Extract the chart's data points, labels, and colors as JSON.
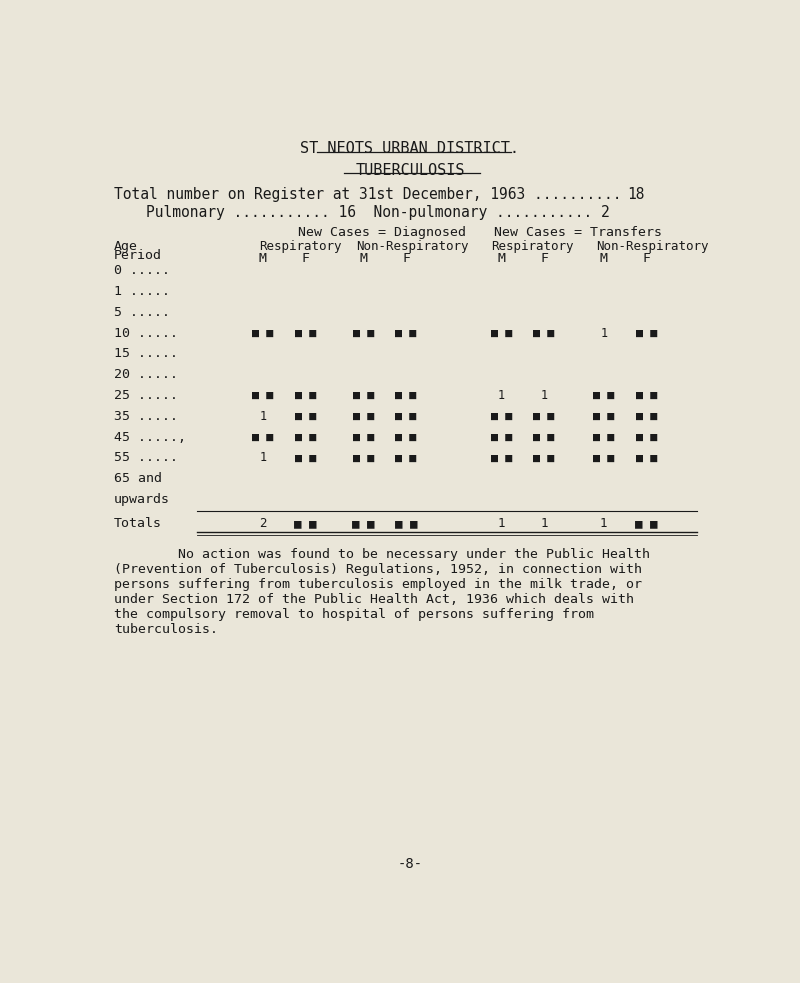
{
  "title1": "ST NEOTS URBAN DISTRICT.",
  "title2": "TUBERCULOSIS",
  "total_line": "Total number on Register at 31st December, 1963 ..........",
  "total_val": "18",
  "pulm_line": "Pulmonary ........... 16  Non-pulmonary ........... 2",
  "header_diag": "New Cases = Diagnosed",
  "header_trans": "New Cases = Transfers",
  "age_periods": [
    "0",
    "1",
    "5",
    "10",
    "15",
    "20",
    "25",
    "35",
    "45",
    "55",
    "65 and",
    "upwards"
  ],
  "age_dots": [
    ".....",
    ".....",
    ".....",
    ".....",
    ".....",
    ".....",
    ".....",
    ".....",
    ".....,",
    ".....",
    "",
    ""
  ],
  "table_data": {
    "diag_resp_m": [
      " ",
      " ",
      " ",
      "s",
      " ",
      " ",
      "s",
      "1",
      "s",
      "1",
      " ",
      " "
    ],
    "diag_resp_f": [
      " ",
      " ",
      " ",
      "s",
      " ",
      " ",
      "s",
      "s",
      "s",
      "s",
      " ",
      " "
    ],
    "diag_nonresp_m": [
      " ",
      " ",
      " ",
      "s",
      " ",
      " ",
      "s",
      "s",
      "s",
      "s",
      " ",
      " "
    ],
    "diag_nonresp_f": [
      " ",
      " ",
      " ",
      "s",
      " ",
      " ",
      "s",
      "s",
      "s",
      "s",
      " ",
      " "
    ],
    "trans_resp_m": [
      " ",
      " ",
      " ",
      "s",
      " ",
      " ",
      "1",
      "s",
      "s",
      "s",
      " ",
      " "
    ],
    "trans_resp_f": [
      " ",
      " ",
      " ",
      "s",
      " ",
      " ",
      "1",
      "s",
      "s",
      "s",
      " ",
      " "
    ],
    "trans_nonresp_m": [
      " ",
      " ",
      " ",
      "1",
      " ",
      " ",
      "s",
      "s",
      "s",
      "s",
      " ",
      " "
    ],
    "trans_nonresp_f": [
      " ",
      " ",
      " ",
      "s",
      " ",
      " ",
      "s",
      "s",
      "s",
      "s",
      " ",
      " "
    ]
  },
  "totals": {
    "diag_resp_m": "2",
    "diag_resp_f": "s",
    "diag_nonresp_m": "s",
    "diag_nonresp_f": "s",
    "trans_resp_m": "1",
    "trans_resp_f": "1",
    "trans_nonresp_m": "1",
    "trans_nonresp_f": "s"
  },
  "footer_text": "        No action was found to be necessary under the Public Health\n(Prevention of Tuberculosis) Regulations, 1952, in connection with\npersons suffering from tuberculosis employed in the milk trade, or\nunder Section 172 of the Public Health Act, 1936 which deals with\nthe compulsory removal to hospital of persons suffering from\ntuberculosis.",
  "page_number": "-8-",
  "bg_color": "#eae6d9",
  "text_color": "#1a1a1a"
}
